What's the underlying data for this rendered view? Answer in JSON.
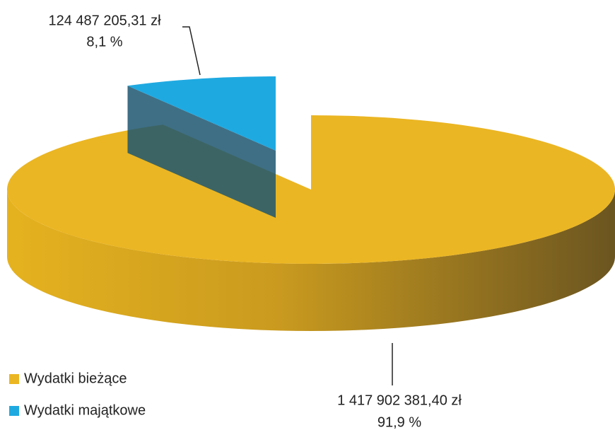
{
  "chart_data": {
    "type": "pie",
    "categories": [
      "Wydatki bieżące",
      "Wydatki majątkowe"
    ],
    "values": [
      91.9,
      8.1
    ],
    "value_labels": [
      "91,9 %",
      "8,1 %"
    ],
    "amount_labels": [
      "1 417 902 381,40 zł",
      "124 487 205,31 zł"
    ],
    "colors": [
      "#ebb623",
      "#1fa9e1"
    ]
  }
}
